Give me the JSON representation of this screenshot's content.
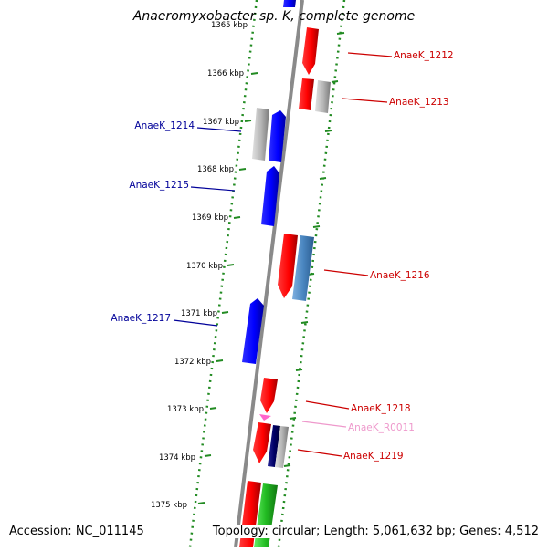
{
  "title": "Anaeromyxobacter sp. K, complete genome",
  "footer": {
    "accession": "Accession: NC_011145",
    "topology": "Topology: circular; Length: 5,061,632 bp; Genes: 4,512"
  },
  "ruler": {
    "labels": [
      "1365 kbp",
      "1366 kbp",
      "1367 kbp",
      "1368 kbp",
      "1369 kbp",
      "1370 kbp",
      "1371 kbp",
      "1372 kbp",
      "1373 kbp",
      "1374 kbp",
      "1375 kbp"
    ]
  },
  "genes": [
    {
      "id": "AnaeK_1212",
      "label": "AnaeK_1212",
      "strand": "forward",
      "color": "#cc0000"
    },
    {
      "id": "AnaeK_1213",
      "label": "AnaeK_1213",
      "strand": "forward",
      "color": "#cc0000"
    },
    {
      "id": "AnaeK_1214",
      "label": "AnaeK_1214",
      "strand": "reverse",
      "color": "#000099"
    },
    {
      "id": "AnaeK_1215",
      "label": "AnaeK_1215",
      "strand": "reverse",
      "color": "#000099"
    },
    {
      "id": "AnaeK_1216",
      "label": "AnaeK_1216",
      "strand": "forward",
      "color": "#cc0000"
    },
    {
      "id": "AnaeK_1217",
      "label": "AnaeK_1217",
      "strand": "reverse",
      "color": "#000099"
    },
    {
      "id": "AnaeK_1218",
      "label": "AnaeK_1218",
      "strand": "forward",
      "color": "#cc0000"
    },
    {
      "id": "AnaeK_R0011",
      "label": "AnaeK_R0011",
      "strand": "forward",
      "color": "#ee99cc"
    },
    {
      "id": "AnaeK_1219",
      "label": "AnaeK_1219",
      "strand": "forward",
      "color": "#cc0000"
    }
  ],
  "colors": {
    "cds_forward": "#ff0000",
    "cds_reverse": "#0000ff",
    "grey_feature": "#b8b8b8",
    "light_blue_feature": "#4a86c0",
    "navy_feature": "#000066",
    "green_feature": "#22bb22",
    "rna_feature": "#ff66cc",
    "backbone": "#888888",
    "ruler_dots": "#228b22"
  }
}
